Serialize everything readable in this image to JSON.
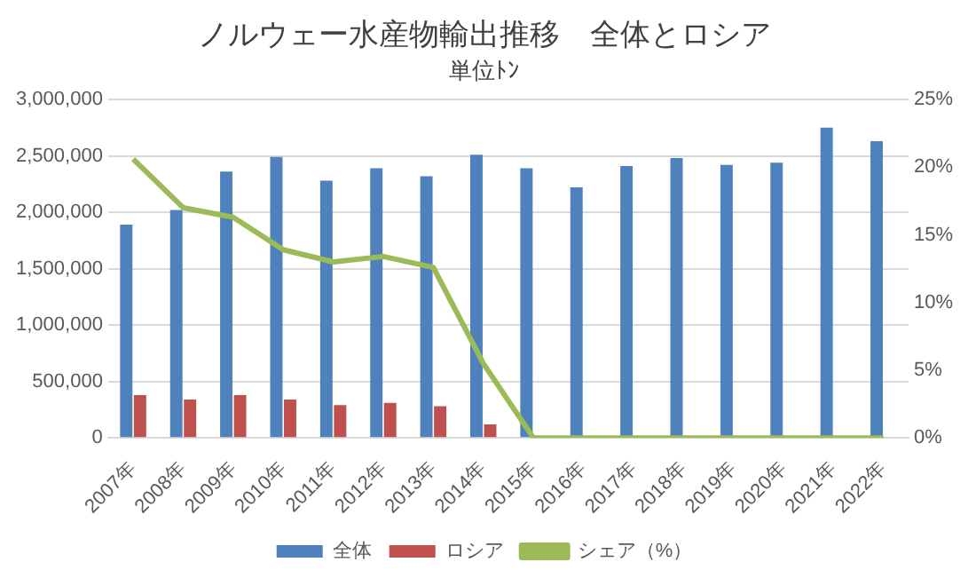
{
  "chart_data": {
    "type": "bar",
    "title": "ノルウェー水産物輸出推移　全体とロシア",
    "subtitle": "単位ﾄﾝ",
    "categories": [
      "2007年",
      "2008年",
      "2009年",
      "2010年",
      "2011年",
      "2012年",
      "2013年",
      "2014年",
      "2015年",
      "2016年",
      "2017年",
      "2018年",
      "2019年",
      "2020年",
      "2021年",
      "2022年"
    ],
    "series": [
      {
        "name": "全体",
        "color": "#4f81bd",
        "values": [
          1890000,
          2020000,
          2360000,
          2490000,
          2280000,
          2390000,
          2320000,
          2510000,
          2390000,
          2220000,
          2410000,
          2480000,
          2420000,
          2440000,
          2750000,
          2630000
        ]
      },
      {
        "name": "ロシア",
        "color": "#c0504d",
        "values": [
          380000,
          340000,
          380000,
          340000,
          290000,
          310000,
          280000,
          120000,
          0,
          0,
          0,
          0,
          0,
          0,
          0,
          0
        ]
      },
      {
        "name": "シェア（%）",
        "type": "line",
        "axis": "y2",
        "color": "#9bbb59",
        "values": [
          20.6,
          17.0,
          16.3,
          13.9,
          13.0,
          13.4,
          12.6,
          5.5,
          0,
          0,
          0,
          0,
          0,
          0,
          0,
          0
        ]
      }
    ],
    "ylim": [
      0,
      3000000
    ],
    "yticks": [
      {
        "value": 0,
        "label": "0"
      },
      {
        "value": 500000,
        "label": "500,000"
      },
      {
        "value": 1000000,
        "label": "1,000,000"
      },
      {
        "value": 1500000,
        "label": "1,500,000"
      },
      {
        "value": 2000000,
        "label": "2,000,000"
      },
      {
        "value": 2500000,
        "label": "2,500,000"
      },
      {
        "value": 3000000,
        "label": "3,000,000"
      }
    ],
    "y2lim": [
      0,
      25
    ],
    "y2ticks": [
      {
        "value": 0,
        "label": "0%"
      },
      {
        "value": 5,
        "label": "5%"
      },
      {
        "value": 10,
        "label": "10%"
      },
      {
        "value": 15,
        "label": "15%"
      },
      {
        "value": 20,
        "label": "20%"
      },
      {
        "value": 25,
        "label": "25%"
      }
    ],
    "grid": "y",
    "legend": "bottom",
    "marker": "none"
  }
}
